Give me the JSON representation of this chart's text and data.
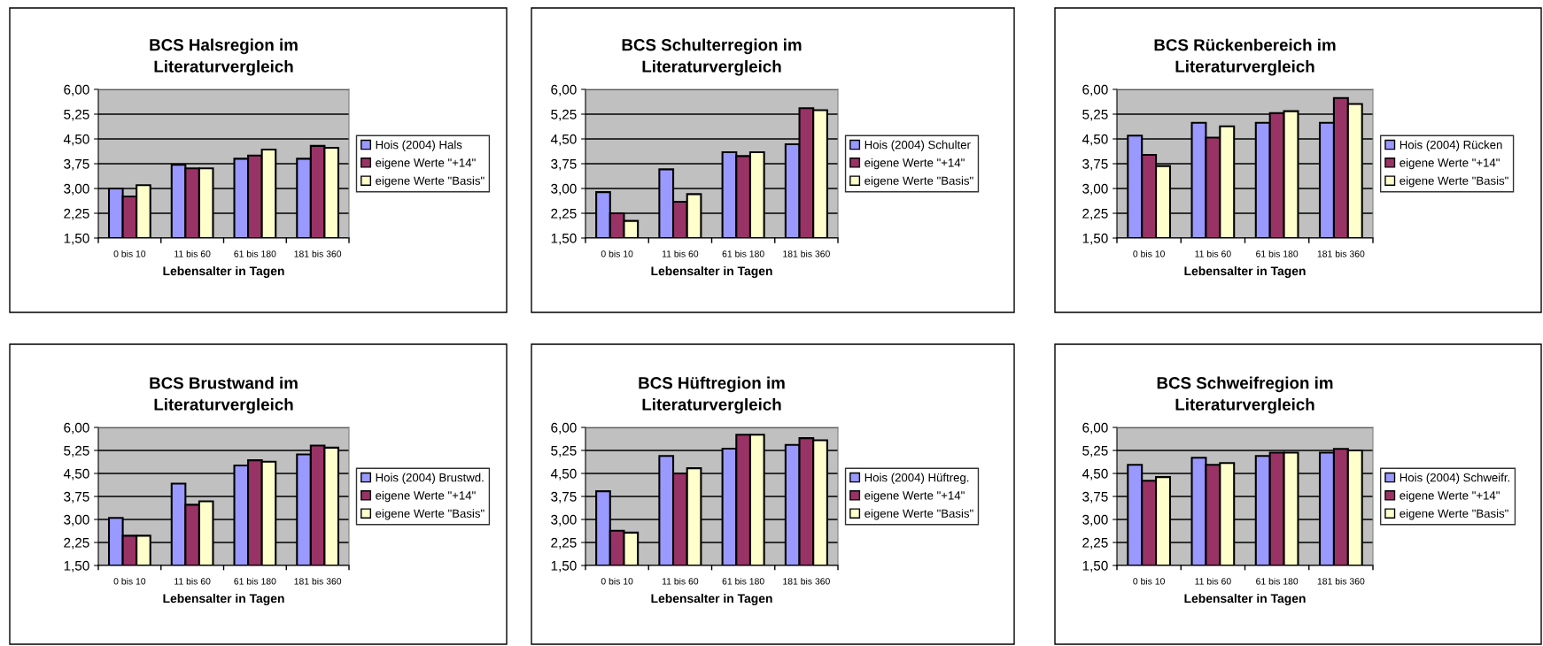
{
  "chart_data": [
    {
      "type": "bar",
      "title": "BCS Halsregion im\nLiteraturvergleich",
      "xlabel": "Lebensalter in Tagen",
      "categories": [
        "0 bis 10",
        "11 bis 60",
        "61 bis 180",
        "181 bis 360"
      ],
      "series": [
        {
          "name": "Hois (2004) Hals",
          "color": "#9999ff",
          "values": [
            3.0,
            3.72,
            3.9,
            3.9
          ]
        },
        {
          "name": "eigene Werte \"+14\"",
          "color": "#993366",
          "values": [
            2.76,
            3.61,
            4.0,
            4.29
          ]
        },
        {
          "name": "eigene Werte \"Basis\"",
          "color": "#ffffcc",
          "values": [
            3.1,
            3.61,
            4.18,
            4.23
          ]
        }
      ],
      "ylim": [
        1.5,
        6.0
      ],
      "yticks": [
        {
          "value": 1.5,
          "label": "1,50"
        },
        {
          "value": 2.25,
          "label": "2,25"
        },
        {
          "value": 3.0,
          "label": "3,00"
        },
        {
          "value": 3.75,
          "label": "3,75"
        },
        {
          "value": 4.5,
          "label": "4,50"
        },
        {
          "value": 5.25,
          "label": "5,25"
        },
        {
          "value": 6.0,
          "label": "6,00"
        }
      ],
      "grid": "y",
      "legend": "right"
    },
    {
      "type": "bar",
      "title": "BCS Schulterregion im\nLiteraturvergleich",
      "xlabel": "Lebensalter in Tagen",
      "categories": [
        "0 bis 10",
        "11 bis 60",
        "61 bis 180",
        "181 bis 360"
      ],
      "series": [
        {
          "name": "Hois (2004) Schulter",
          "color": "#9999ff",
          "values": [
            2.89,
            3.58,
            4.1,
            4.34
          ]
        },
        {
          "name": "eigene Werte \"+14\"",
          "color": "#993366",
          "values": [
            2.25,
            2.6,
            3.98,
            5.43
          ]
        },
        {
          "name": "eigene Werte \"Basis\"",
          "color": "#ffffcc",
          "values": [
            2.02,
            2.83,
            4.1,
            5.37
          ]
        }
      ],
      "ylim": [
        1.5,
        6.0
      ],
      "yticks": [
        {
          "value": 1.5,
          "label": "1,50"
        },
        {
          "value": 2.25,
          "label": "2,25"
        },
        {
          "value": 3.0,
          "label": "3,00"
        },
        {
          "value": 3.75,
          "label": "3,75"
        },
        {
          "value": 4.5,
          "label": "4,50"
        },
        {
          "value": 5.25,
          "label": "5,25"
        },
        {
          "value": 6.0,
          "label": "6,00"
        }
      ],
      "grid": "y",
      "legend": "right"
    },
    {
      "type": "bar",
      "title": "BCS Rückenbereich im\nLiteraturvergleich",
      "xlabel": "Lebensalter in Tagen",
      "categories": [
        "0 bis 10",
        "11 bis 60",
        "61 bis 180",
        "181 bis 360"
      ],
      "series": [
        {
          "name": "Hois (2004) Rücken",
          "color": "#9999ff",
          "values": [
            4.6,
            4.99,
            4.99,
            4.99
          ]
        },
        {
          "name": "eigene Werte \"+14\"",
          "color": "#993366",
          "values": [
            4.02,
            4.54,
            5.28,
            5.74
          ]
        },
        {
          "name": "eigene Werte \"Basis\"",
          "color": "#ffffcc",
          "values": [
            3.68,
            4.88,
            5.34,
            5.56
          ]
        }
      ],
      "ylim": [
        1.5,
        6.0
      ],
      "yticks": [
        {
          "value": 1.5,
          "label": "1,50"
        },
        {
          "value": 2.25,
          "label": "2,25"
        },
        {
          "value": 3.0,
          "label": "3,00"
        },
        {
          "value": 3.75,
          "label": "3,75"
        },
        {
          "value": 4.5,
          "label": "4,50"
        },
        {
          "value": 5.25,
          "label": "5,25"
        },
        {
          "value": 6.0,
          "label": "6,00"
        }
      ],
      "grid": "y",
      "legend": "right"
    },
    {
      "type": "bar",
      "title": "BCS Brustwand im\nLiteraturvergleich",
      "xlabel": "Lebensalter in Tagen",
      "categories": [
        "0 bis 10",
        "11 bis 60",
        "61 bis 180",
        "181 bis 360"
      ],
      "series": [
        {
          "name": "Hois (2004) Brustwd.",
          "color": "#9999ff",
          "values": [
            3.05,
            4.17,
            4.76,
            5.12
          ]
        },
        {
          "name": "eigene Werte \"+14\"",
          "color": "#993366",
          "values": [
            2.47,
            3.48,
            4.93,
            5.41
          ]
        },
        {
          "name": "eigene Werte \"Basis\"",
          "color": "#ffffcc",
          "values": [
            2.47,
            3.59,
            4.88,
            5.34
          ]
        }
      ],
      "ylim": [
        1.5,
        6.0
      ],
      "yticks": [
        {
          "value": 1.5,
          "label": "1,50"
        },
        {
          "value": 2.25,
          "label": "2,25"
        },
        {
          "value": 3.0,
          "label": "3,00"
        },
        {
          "value": 3.75,
          "label": "3,75"
        },
        {
          "value": 4.5,
          "label": "4,50"
        },
        {
          "value": 5.25,
          "label": "5,25"
        },
        {
          "value": 6.0,
          "label": "6,00"
        }
      ],
      "grid": "y",
      "legend": "right"
    },
    {
      "type": "bar",
      "title": "BCS Hüftregion im\nLiteraturvergleich",
      "xlabel": "Lebensalter in Tagen",
      "categories": [
        "0 bis 10",
        "11 bis 60",
        "61 bis 180",
        "181 bis 360"
      ],
      "series": [
        {
          "name": "Hois (2004) Hüftreg.",
          "color": "#9999ff",
          "values": [
            3.92,
            5.07,
            5.31,
            5.43
          ]
        },
        {
          "name": "eigene Werte \"+14\"",
          "color": "#993366",
          "values": [
            2.63,
            4.5,
            5.76,
            5.65
          ]
        },
        {
          "name": "eigene Werte \"Basis\"",
          "color": "#ffffcc",
          "values": [
            2.57,
            4.67,
            5.76,
            5.58
          ]
        }
      ],
      "ylim": [
        1.5,
        6.0
      ],
      "yticks": [
        {
          "value": 1.5,
          "label": "1,50"
        },
        {
          "value": 2.25,
          "label": "2,25"
        },
        {
          "value": 3.0,
          "label": "3,00"
        },
        {
          "value": 3.75,
          "label": "3,75"
        },
        {
          "value": 4.5,
          "label": "4,50"
        },
        {
          "value": 5.25,
          "label": "5,25"
        },
        {
          "value": 6.0,
          "label": "6,00"
        }
      ],
      "grid": "y",
      "legend": "right"
    },
    {
      "type": "bar",
      "title": "BCS Schweifregion im\nLiteraturvergleich",
      "xlabel": "Lebensalter in Tagen",
      "categories": [
        "0 bis 10",
        "11 bis 60",
        "61 bis 180",
        "181 bis 360"
      ],
      "series": [
        {
          "name": "Hois (2004) Schweifr.",
          "color": "#9999ff",
          "values": [
            4.78,
            5.01,
            5.07,
            5.18
          ]
        },
        {
          "name": "eigene Werte \"+14\"",
          "color": "#993366",
          "values": [
            4.26,
            4.78,
            5.18,
            5.3
          ]
        },
        {
          "name": "eigene Werte \"Basis\"",
          "color": "#ffffcc",
          "values": [
            4.38,
            4.84,
            5.18,
            5.25
          ]
        }
      ],
      "ylim": [
        1.5,
        6.0
      ],
      "yticks": [
        {
          "value": 1.5,
          "label": "1,50"
        },
        {
          "value": 2.25,
          "label": "2,25"
        },
        {
          "value": 3.0,
          "label": "3,00"
        },
        {
          "value": 3.75,
          "label": "3,75"
        },
        {
          "value": 4.5,
          "label": "4,50"
        },
        {
          "value": 5.25,
          "label": "5,25"
        },
        {
          "value": 6.0,
          "label": "6,00"
        }
      ],
      "grid": "y",
      "legend": "right"
    }
  ]
}
